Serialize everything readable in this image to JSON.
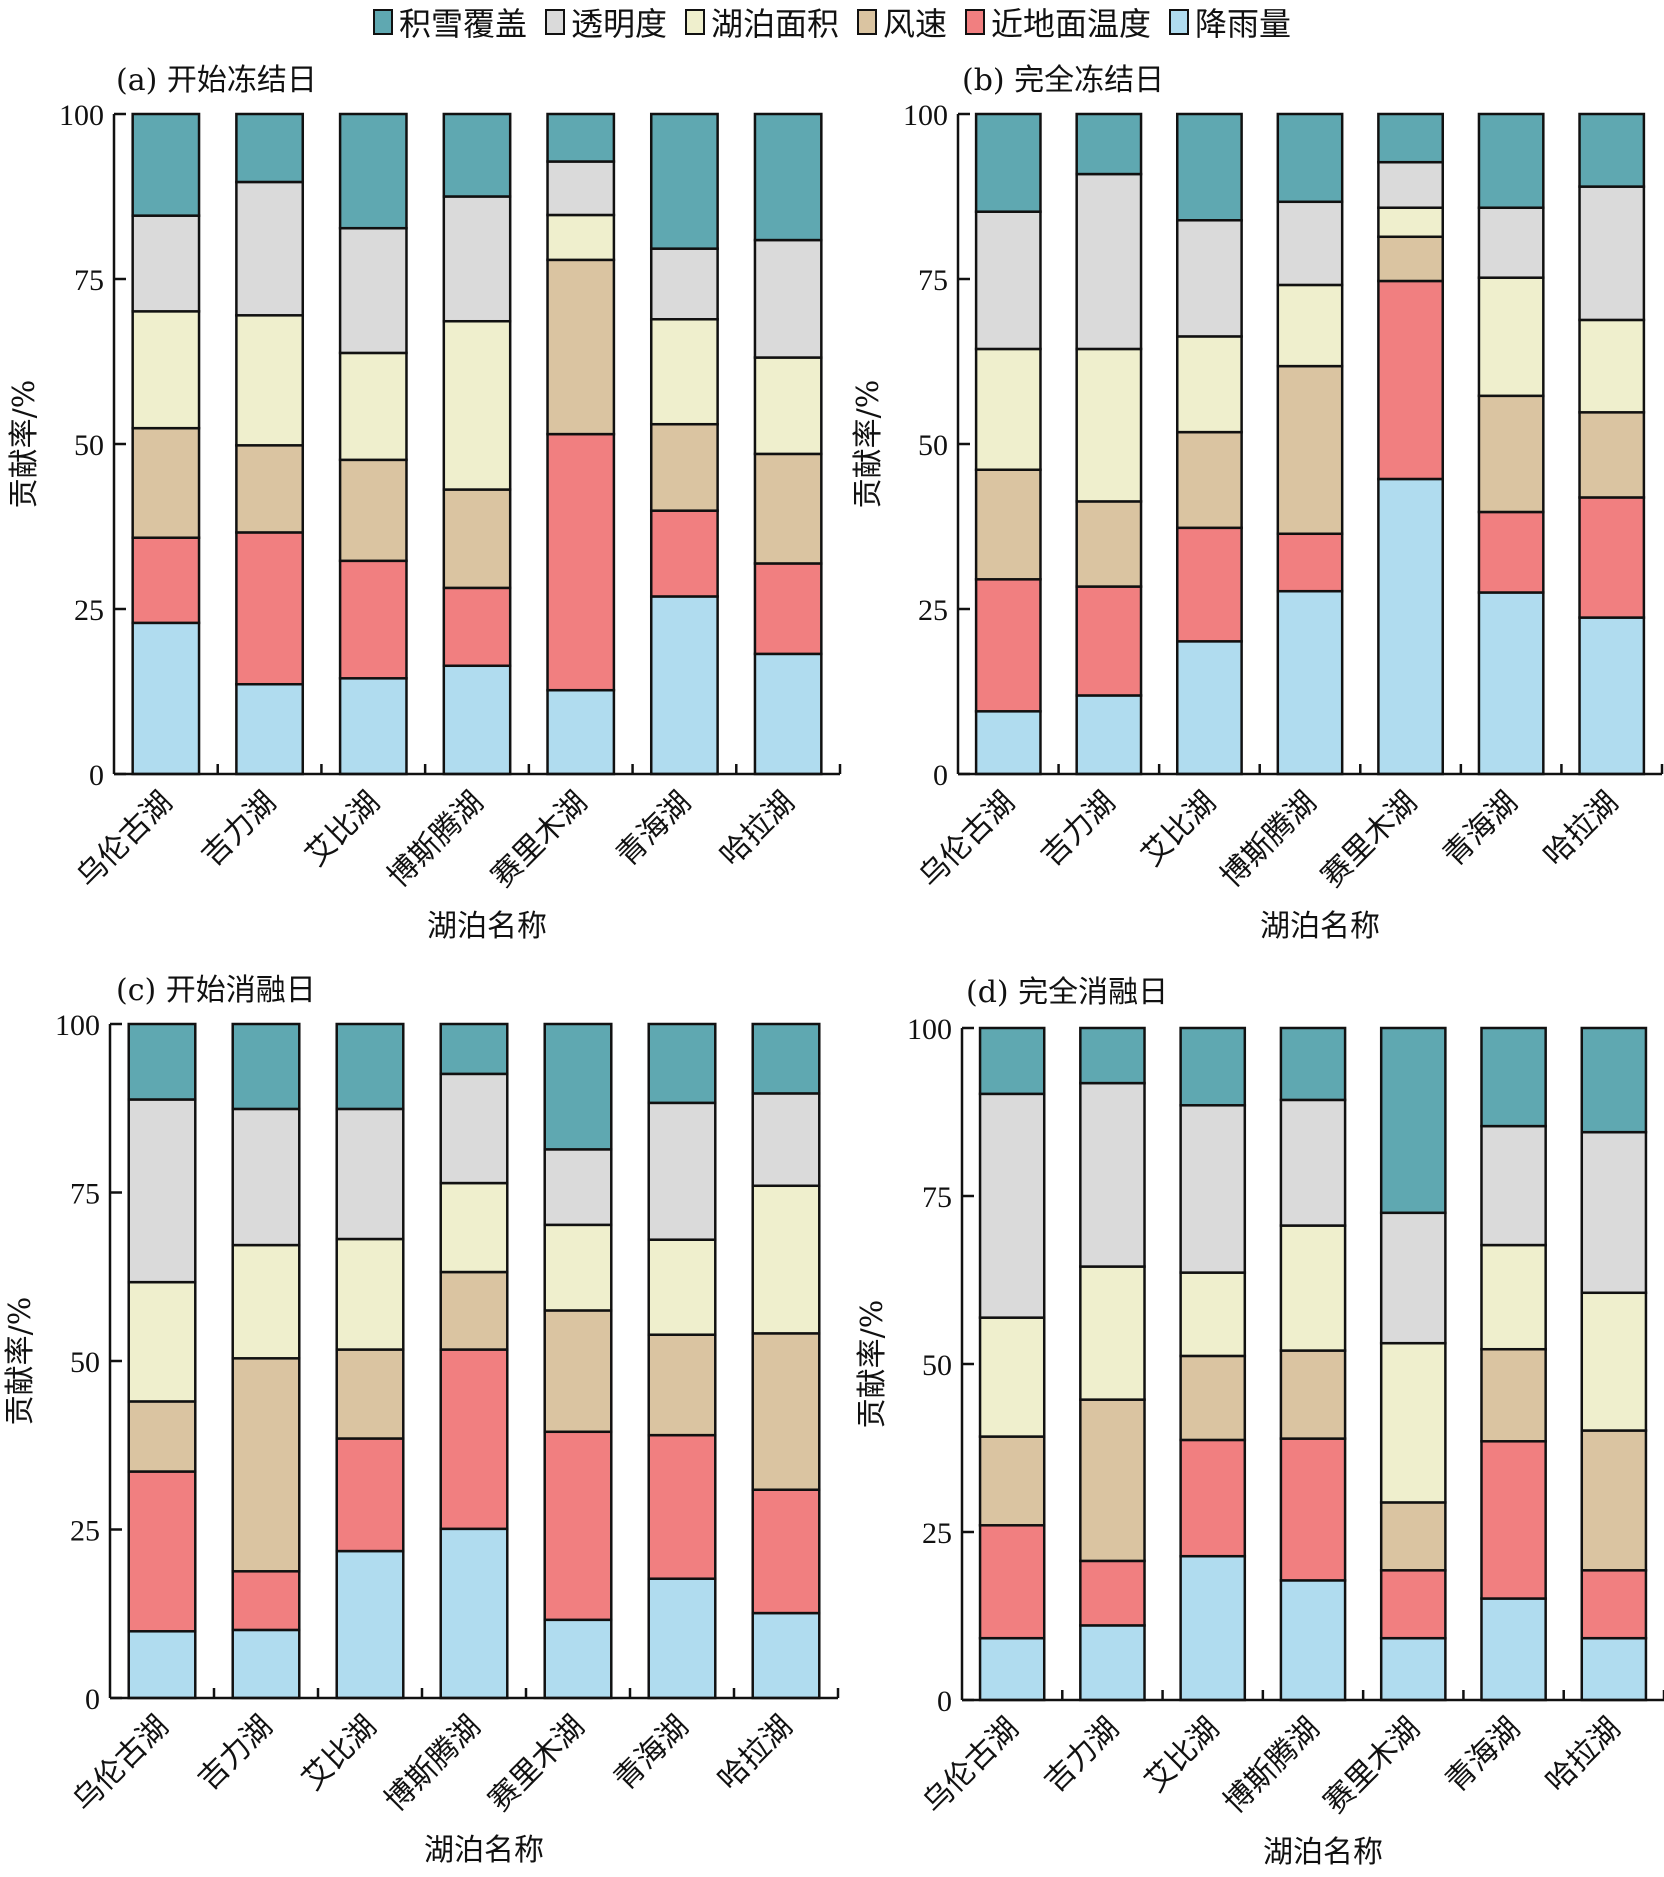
{
  "chart_data": {
    "type": "bar",
    "stacked": true,
    "legend": {
      "placement": "top-center",
      "entries": [
        "积雪覆盖",
        "透明度",
        "湖泊面积",
        "风速",
        "近地面温度",
        "降雨量"
      ]
    },
    "series_order_bottom_to_top": [
      "降雨量",
      "近地面温度",
      "风速",
      "湖泊面积",
      "透明度",
      "积雪覆盖"
    ],
    "colors": {
      "降雨量": "#b0dcef",
      "近地面温度": "#f17f80",
      "风速": "#dac4a1",
      "湖泊面积": "#efefcd",
      "透明度": "#dadada",
      "积雪覆盖": "#5fa8b1"
    },
    "categories": [
      "乌伦古湖",
      "吉力湖",
      "艾比湖",
      "博斯腾湖",
      "赛里木湖",
      "青海湖",
      "哈拉湖"
    ],
    "xlabel": "湖泊名称",
    "ylabel": "贡献率/%",
    "ylim": [
      0,
      100
    ],
    "yticks": [
      0,
      25,
      50,
      75,
      100
    ],
    "grid": false,
    "panels": [
      {
        "title": "(a) 开始冻结日",
        "series": [
          {
            "name": "降雨量",
            "values": [
              22.9,
              13.6,
              14.5,
              16.4,
              12.7,
              26.9,
              18.2
            ]
          },
          {
            "name": "近地面温度",
            "values": [
              12.9,
              23.0,
              17.8,
              11.8,
              38.8,
              13.0,
              13.7
            ]
          },
          {
            "name": "风速",
            "values": [
              16.6,
              13.2,
              15.3,
              14.9,
              26.4,
              13.1,
              16.6
            ]
          },
          {
            "name": "湖泊面积",
            "values": [
              17.7,
              19.7,
              16.2,
              25.5,
              6.8,
              15.9,
              14.6
            ]
          },
          {
            "name": "透明度",
            "values": [
              14.5,
              20.2,
              18.9,
              18.9,
              8.1,
              10.7,
              17.8
            ]
          },
          {
            "name": "积雪覆盖",
            "values": [
              15.4,
              10.3,
              17.3,
              12.5,
              7.2,
              20.4,
              19.1
            ]
          }
        ]
      },
      {
        "title": "(b) 完全冻结日",
        "series": [
          {
            "name": "降雨量",
            "values": [
              9.5,
              11.9,
              20.1,
              27.7,
              44.7,
              27.5,
              23.7
            ]
          },
          {
            "name": "近地面温度",
            "values": [
              20.0,
              16.5,
              17.2,
              8.7,
              30.0,
              12.2,
              18.2
            ]
          },
          {
            "name": "风速",
            "values": [
              16.6,
              12.9,
              14.5,
              25.4,
              6.7,
              17.6,
              12.9
            ]
          },
          {
            "name": "湖泊面积",
            "values": [
              18.3,
              23.1,
              14.5,
              12.3,
              4.4,
              17.9,
              14.0
            ]
          },
          {
            "name": "透明度",
            "values": [
              20.8,
              26.5,
              17.6,
              12.6,
              6.9,
              10.6,
              20.2
            ]
          },
          {
            "name": "积雪覆盖",
            "values": [
              14.8,
              9.1,
              16.1,
              13.3,
              7.3,
              14.2,
              11.0
            ]
          }
        ]
      },
      {
        "title": "(c) 开始消融日",
        "series": [
          {
            "name": "降雨量",
            "values": [
              9.9,
              10.1,
              21.8,
              25.1,
              11.6,
              17.7,
              12.6
            ]
          },
          {
            "name": "近地面温度",
            "values": [
              23.7,
              8.7,
              16.7,
              26.6,
              27.9,
              21.3,
              18.3
            ]
          },
          {
            "name": "风速",
            "values": [
              10.4,
              31.6,
              13.2,
              11.5,
              18.0,
              14.9,
              23.2
            ]
          },
          {
            "name": "湖泊面积",
            "values": [
              17.7,
              16.8,
              16.4,
              13.2,
              12.7,
              14.1,
              21.9
            ]
          },
          {
            "name": "透明度",
            "values": [
              27.1,
              20.2,
              19.3,
              16.2,
              11.2,
              20.3,
              13.7
            ]
          },
          {
            "name": "积雪覆盖",
            "values": [
              11.2,
              12.6,
              12.6,
              7.4,
              18.6,
              11.7,
              10.3
            ]
          }
        ]
      },
      {
        "title": "(d) 完全消融日",
        "series": [
          {
            "name": "降雨量",
            "values": [
              9.2,
              11.1,
              21.4,
              17.8,
              9.2,
              15.1,
              9.2
            ]
          },
          {
            "name": "近地面温度",
            "values": [
              16.8,
              9.6,
              17.3,
              21.1,
              10.1,
              23.4,
              10.1
            ]
          },
          {
            "name": "风速",
            "values": [
              13.2,
              24.0,
              12.5,
              13.1,
              10.1,
              13.7,
              20.8
            ]
          },
          {
            "name": "湖泊面积",
            "values": [
              17.7,
              19.8,
              12.4,
              18.6,
              23.7,
              15.5,
              20.5
            ]
          },
          {
            "name": "透明度",
            "values": [
              33.3,
              27.3,
              24.9,
              18.7,
              19.4,
              17.7,
              23.9
            ]
          },
          {
            "name": "积雪覆盖",
            "values": [
              9.8,
              8.2,
              11.5,
              10.7,
              27.5,
              14.6,
              15.5
            ]
          }
        ]
      }
    ]
  }
}
